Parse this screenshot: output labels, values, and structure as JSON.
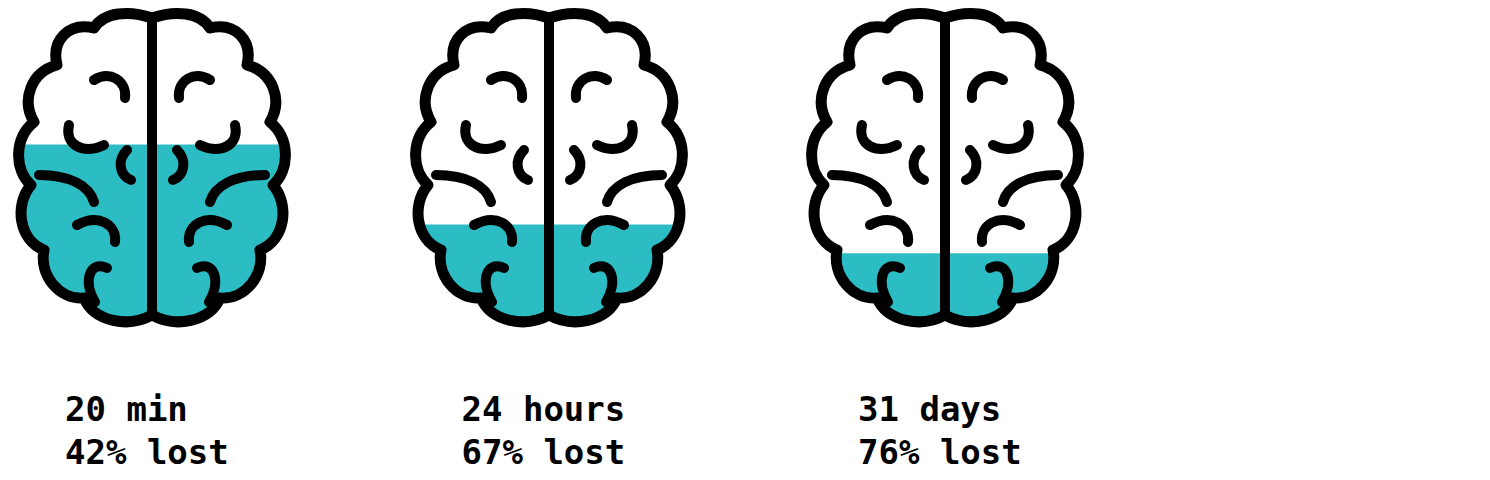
{
  "chart_data": {
    "type": "pictogram",
    "categories": [
      "20 min",
      "24 hours",
      "31 days"
    ],
    "values": [
      42,
      67,
      76
    ],
    "value_labels": [
      "42% lost",
      "67% lost",
      "76% lost"
    ],
    "color": "#2bbdc3",
    "ylim": [
      0,
      100
    ],
    "tick_labels": false,
    "data_labels": true
  }
}
